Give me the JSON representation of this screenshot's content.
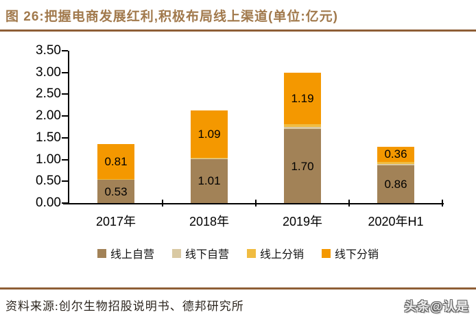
{
  "header": {
    "title": "图 26:把握电商发展红利,积极布局线上渠道(单位:亿元)"
  },
  "chart_data": {
    "type": "bar",
    "stacked": true,
    "title": "把握电商发展红利,积极布局线上渠道",
    "unit": "亿元",
    "categories": [
      "2017年",
      "2018年",
      "2019年",
      "2020年H1"
    ],
    "series": [
      {
        "name": "线上自营",
        "color": "#A28257",
        "values": [
          0.53,
          1.01,
          1.7,
          0.86
        ],
        "labels": [
          "0.53",
          "1.01",
          "1.70",
          "0.86"
        ]
      },
      {
        "name": "线下自营",
        "color": "#D9C9A3",
        "values": [
          0.01,
          0.01,
          0.05,
          0.04
        ],
        "labels": [
          null,
          null,
          null,
          null
        ]
      },
      {
        "name": "线上分销",
        "color": "#F0BC41",
        "values": [
          0.01,
          0.02,
          0.06,
          0.04
        ],
        "labels": [
          null,
          null,
          null,
          null
        ]
      },
      {
        "name": "线下分销",
        "color": "#F49800",
        "values": [
          0.81,
          1.09,
          1.19,
          0.36
        ],
        "labels": [
          "0.81",
          "1.09",
          "1.19",
          "0.36"
        ]
      }
    ],
    "ylim": [
      0,
      3.5
    ],
    "yticks": [
      "3.50",
      "3.00",
      "2.50",
      "2.00",
      "1.50",
      "1.00",
      "0.50",
      "0.00"
    ],
    "xlabel": "",
    "ylabel": "",
    "legend_position": "bottom",
    "grid": false
  },
  "footer": {
    "source": "资料来源:创尔生物招股说明书、德邦研究所",
    "watermark": "头条@认是"
  },
  "colors": {
    "title_text": "#A1794C",
    "divider": "#8E5E35",
    "axis": "#000000"
  }
}
